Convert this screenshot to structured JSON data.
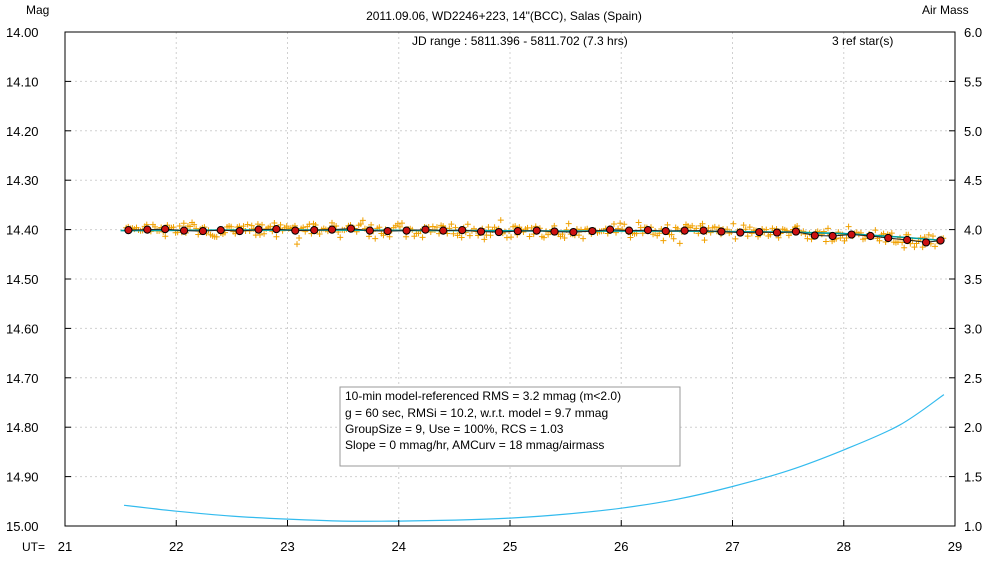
{
  "chart_data": {
    "type": "scatter",
    "title": "2011.09.06, WD2246+223, 14\"(BCC), Salas (Spain)",
    "ylabel_left": "Mag",
    "ylabel_right": "Air Mass",
    "xlabel": "UT=",
    "jd_range": "JD range : 5811.396 - 5811.702 (7.3 hrs)",
    "ref_stars": "3 ref star(s)",
    "xlim": [
      21,
      29
    ],
    "ylim_left": [
      15.0,
      14.0
    ],
    "ylim_right": [
      1.0,
      6.0
    ],
    "x_ticks": [
      "21",
      "22",
      "23",
      "24",
      "25",
      "26",
      "27",
      "28",
      "29"
    ],
    "y_left_ticks": [
      "14.00",
      "14.10",
      "14.20",
      "14.30",
      "14.40",
      "14.50",
      "14.60",
      "14.70",
      "14.80",
      "14.90",
      "15.00"
    ],
    "y_right_ticks": [
      "6.0",
      "5.5",
      "5.0",
      "4.5",
      "4.0",
      "3.5",
      "3.0",
      "2.5",
      "2.0",
      "1.5",
      "1.0"
    ],
    "grid": true,
    "info_box": [
      "10-min model-referenced RMS = 3.2 mmag (m<2.0)",
      "g = 60 sec, RMSi = 10.2, w.r.t. model = 9.7 mmag",
      "GroupSize = 9, Use = 100%, RCS = 1.03",
      "Slope = 0 mmag/hr, AMCurv = 18 mmag/airmass"
    ],
    "colors": {
      "raw_points": "#f0a000",
      "group_points": "#cc1111",
      "model_line": "#00a0a0",
      "airmass_line": "#33bbee",
      "grid": "#d0d0d0"
    },
    "series": [
      {
        "name": "group averages (mag)",
        "x": [
          21.57,
          21.74,
          21.9,
          22.07,
          22.24,
          22.4,
          22.57,
          22.74,
          22.9,
          23.07,
          23.24,
          23.4,
          23.57,
          23.74,
          23.9,
          24.07,
          24.24,
          24.4,
          24.57,
          24.74,
          24.9,
          25.07,
          25.24,
          25.4,
          25.57,
          25.74,
          25.9,
          26.07,
          26.24,
          26.4,
          26.57,
          26.74,
          26.9,
          27.07,
          27.24,
          27.4,
          27.57,
          27.74,
          27.9,
          28.07,
          28.24,
          28.4,
          28.57,
          28.74,
          28.87
        ],
        "y": [
          14.401,
          14.4,
          14.399,
          14.402,
          14.403,
          14.401,
          14.403,
          14.4,
          14.399,
          14.402,
          14.401,
          14.4,
          14.398,
          14.402,
          14.403,
          14.402,
          14.4,
          14.402,
          14.401,
          14.404,
          14.405,
          14.403,
          14.402,
          14.404,
          14.405,
          14.403,
          14.4,
          14.402,
          14.401,
          14.403,
          14.402,
          14.402,
          14.404,
          14.406,
          14.405,
          14.406,
          14.404,
          14.412,
          14.413,
          14.41,
          14.413,
          14.417,
          14.421,
          14.426,
          14.422
        ]
      },
      {
        "name": "model (mag)",
        "x": [
          21.5,
          22.5,
          23.5,
          24.5,
          25.5,
          26.5,
          27.5,
          28.0,
          28.5,
          28.9
        ],
        "y": [
          14.402,
          14.401,
          14.401,
          14.402,
          14.403,
          14.403,
          14.405,
          14.408,
          14.415,
          14.422
        ]
      },
      {
        "name": "air mass",
        "x": [
          21.53,
          22.0,
          22.5,
          23.0,
          23.5,
          24.0,
          24.5,
          25.0,
          25.5,
          26.0,
          26.5,
          27.0,
          27.5,
          28.0,
          28.5,
          28.9
        ],
        "y": [
          1.21,
          1.15,
          1.1,
          1.07,
          1.05,
          1.05,
          1.06,
          1.08,
          1.12,
          1.18,
          1.27,
          1.4,
          1.56,
          1.77,
          2.02,
          2.33
        ]
      }
    ]
  }
}
